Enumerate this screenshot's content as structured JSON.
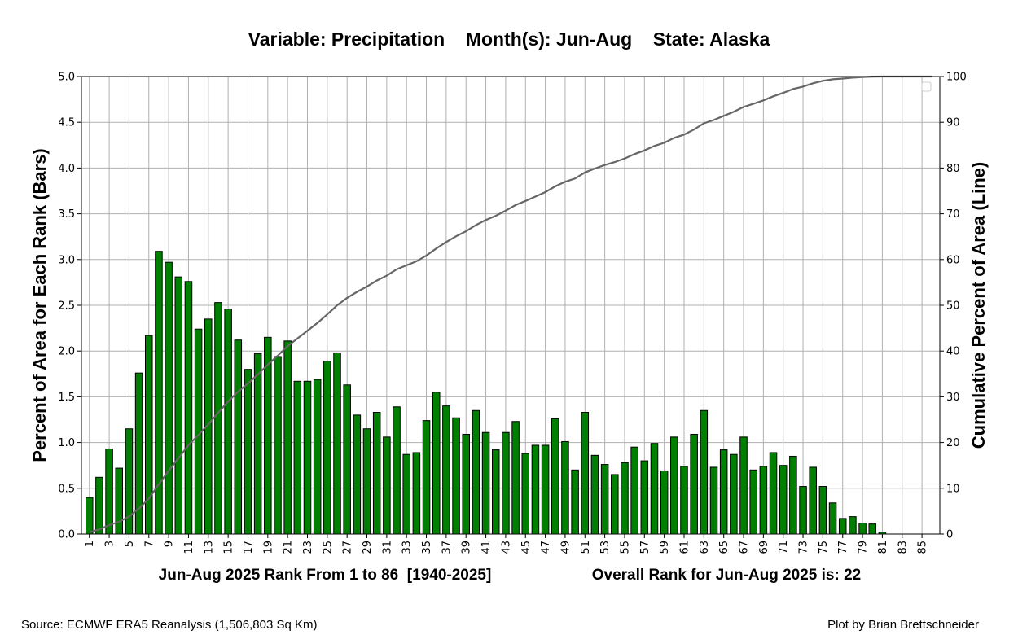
{
  "chart_data": {
    "type": "bar",
    "title": "Variable: Precipitation    Month(s): Jun-Aug    State: Alaska",
    "ylabel_left": "Percent of Area for Each Rank (Bars)",
    "ylabel_right": "Cumulative Percent of Area (Line)",
    "xlabel_left": "Jun-Aug 2025 Rank From 1 to 86  [1940-2025]",
    "xlabel_right": "Overall Rank for Jun-Aug 2025 is: 22",
    "ylim_left": [
      0,
      5
    ],
    "ylim_right": [
      0,
      100
    ],
    "yticks_left": [
      "0.0",
      "0.5",
      "1.0",
      "1.5",
      "2.0",
      "2.5",
      "3.0",
      "3.5",
      "4.0",
      "4.5",
      "5.0"
    ],
    "yticks_right": [
      "0",
      "10",
      "20",
      "30",
      "40",
      "50",
      "60",
      "70",
      "80",
      "90",
      "100"
    ],
    "x_tick_labels": [
      "1",
      "3",
      "5",
      "7",
      "9",
      "11",
      "13",
      "15",
      "17",
      "19",
      "21",
      "23",
      "25",
      "27",
      "29",
      "31",
      "33",
      "35",
      "37",
      "39",
      "41",
      "43",
      "45",
      "47",
      "49",
      "51",
      "53",
      "55",
      "57",
      "59",
      "61",
      "63",
      "65",
      "67",
      "69",
      "71",
      "73",
      "75",
      "77",
      "79",
      "81",
      "83",
      "85"
    ],
    "grid": true,
    "legend": "top-right (empty)",
    "bar_color": "#008000",
    "line_color": "#666666",
    "categories": [
      1,
      2,
      3,
      4,
      5,
      6,
      7,
      8,
      9,
      10,
      11,
      12,
      13,
      14,
      15,
      16,
      17,
      18,
      19,
      20,
      21,
      22,
      23,
      24,
      25,
      26,
      27,
      28,
      29,
      30,
      31,
      32,
      33,
      34,
      35,
      36,
      37,
      38,
      39,
      40,
      41,
      42,
      43,
      44,
      45,
      46,
      47,
      48,
      49,
      50,
      51,
      52,
      53,
      54,
      55,
      56,
      57,
      58,
      59,
      60,
      61,
      62,
      63,
      64,
      65,
      66,
      67,
      68,
      69,
      70,
      71,
      72,
      73,
      74,
      75,
      76,
      77,
      78,
      79,
      80,
      81,
      82,
      83,
      84,
      85,
      86
    ],
    "values": [
      0.4,
      0.62,
      0.93,
      0.72,
      1.15,
      1.76,
      2.17,
      3.09,
      2.97,
      2.81,
      2.76,
      2.24,
      2.35,
      2.53,
      2.46,
      2.12,
      1.8,
      1.97,
      2.15,
      1.94,
      2.11,
      1.67,
      1.67,
      1.69,
      1.89,
      1.98,
      1.63,
      1.3,
      1.15,
      1.33,
      1.06,
      1.39,
      0.87,
      0.89,
      1.24,
      1.55,
      1.4,
      1.27,
      1.09,
      1.35,
      1.11,
      0.92,
      1.11,
      1.23,
      0.88,
      0.97,
      0.97,
      1.26,
      1.01,
      0.7,
      1.33,
      0.86,
      0.76,
      0.65,
      0.78,
      0.95,
      0.8,
      0.99,
      0.69,
      1.06,
      0.74,
      1.09,
      1.35,
      0.73,
      0.92,
      0.87,
      1.06,
      0.7,
      0.74,
      0.89,
      0.75,
      0.85,
      0.52,
      0.73,
      0.52,
      0.34,
      0.17,
      0.19,
      0.12,
      0.11,
      0.02,
      0.0,
      0.0,
      0.0,
      0.0,
      0.0
    ]
  },
  "footer": {
    "source": "Source: ECMWF ERA5 Reanalysis (1,506,803 Sq Km)",
    "credit": "Plot by Brian Brettschneider"
  }
}
